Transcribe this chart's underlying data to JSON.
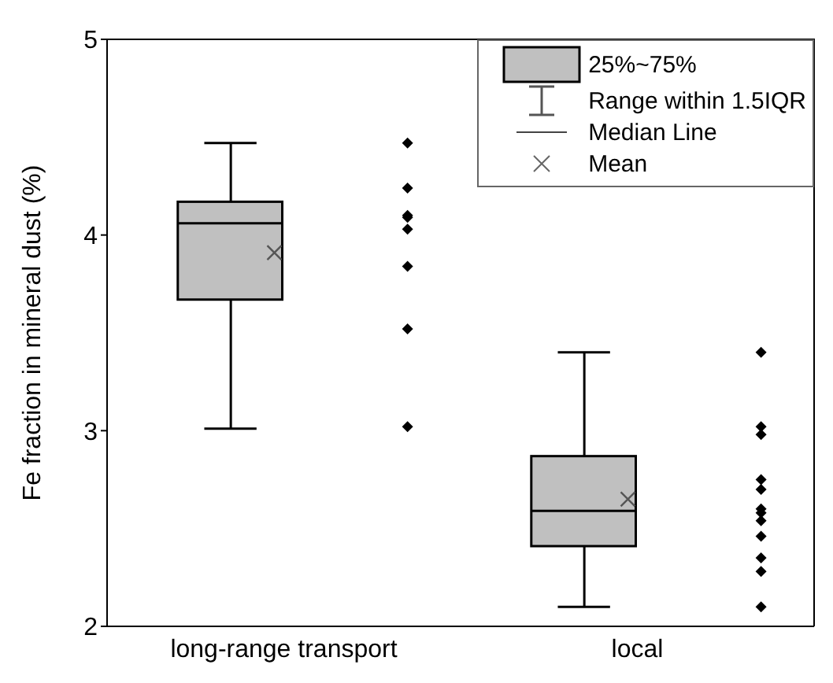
{
  "chart_data": {
    "type": "box",
    "ylabel": "Fe fraction in mineral dust (%)",
    "categories": [
      "long-range transport",
      "local"
    ],
    "ylim": [
      2,
      5
    ],
    "yticks": [
      2,
      3,
      4,
      5
    ],
    "legend": "top right",
    "marker": "diamond",
    "grid": false,
    "annotations": [
      "Range within 1.5IQR",
      "Median Line",
      "Mean"
    ],
    "series": [
      {
        "type": "box",
        "name": "25%~75%",
        "color": "#c0c0c0",
        "boxes": [
          {
            "low": 3.01,
            "q1": 3.67,
            "median": 4.06,
            "q3": 4.17,
            "high": 4.47,
            "mean": 3.91
          },
          {
            "low": 2.1,
            "q1": 2.41,
            "median": 2.59,
            "q3": 2.87,
            "high": 3.4,
            "mean": 2.65
          }
        ]
      },
      {
        "type": "scatter",
        "color": "#000000",
        "x": [
          "long-range transport",
          "long-range transport",
          "long-range transport",
          "long-range transport",
          "long-range transport",
          "long-range transport",
          "long-range transport",
          "long-range transport",
          "local",
          "local",
          "local",
          "local",
          "local",
          "local",
          "local",
          "local",
          "local",
          "local",
          "local",
          "local"
        ],
        "values": [
          4.47,
          4.24,
          4.09,
          4.1,
          4.03,
          3.84,
          3.52,
          3.02,
          3.4,
          3.02,
          2.98,
          2.75,
          2.7,
          2.6,
          2.58,
          2.54,
          2.46,
          2.35,
          2.28,
          2.1
        ]
      }
    ]
  }
}
